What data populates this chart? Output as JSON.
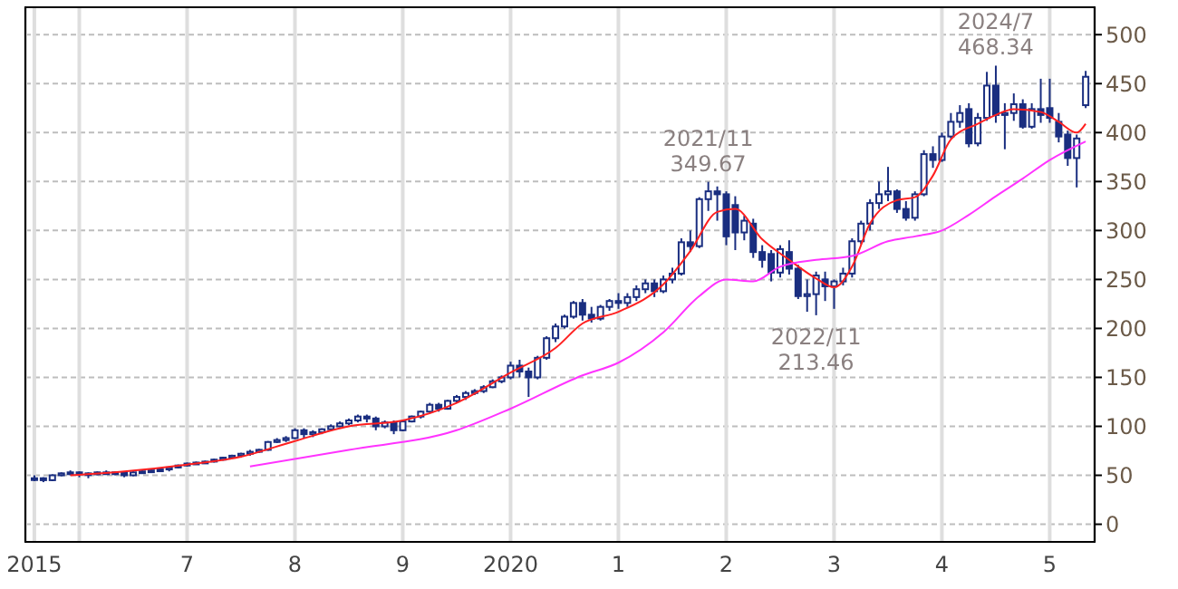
{
  "chart_data": {
    "type": "candlestick",
    "color": "#1a2e80",
    "x": [
      "2015-08",
      "2015-09",
      "2015-10",
      "2015-11",
      "2015-12",
      "2016-01",
      "2016-02",
      "2016-03",
      "2016-04",
      "2016-05",
      "2016-06",
      "2016-07",
      "2016-08",
      "2016-09",
      "2016-10",
      "2016-11",
      "2016-12",
      "2017-01",
      "2017-02",
      "2017-03",
      "2017-04",
      "2017-05",
      "2017-06",
      "2017-07",
      "2017-08",
      "2017-09",
      "2017-10",
      "2017-11",
      "2017-12",
      "2018-01",
      "2018-02",
      "2018-03",
      "2018-04",
      "2018-05",
      "2018-06",
      "2018-07",
      "2018-08",
      "2018-09",
      "2018-10",
      "2018-11",
      "2018-12",
      "2019-01",
      "2019-02",
      "2019-03",
      "2019-04",
      "2019-05",
      "2019-06",
      "2019-07",
      "2019-08",
      "2019-09",
      "2019-10",
      "2019-11",
      "2019-12",
      "2020-01",
      "2020-02",
      "2020-03",
      "2020-04",
      "2020-05",
      "2020-06",
      "2020-07",
      "2020-08",
      "2020-09",
      "2020-10",
      "2020-11",
      "2020-12",
      "2021-01",
      "2021-02",
      "2021-03",
      "2021-04",
      "2021-05",
      "2021-06",
      "2021-07",
      "2021-08",
      "2021-09",
      "2021-10",
      "2021-11",
      "2021-12",
      "2022-01",
      "2022-02",
      "2022-03",
      "2022-04",
      "2022-05",
      "2022-06",
      "2022-07",
      "2022-08",
      "2022-09",
      "2022-10",
      "2022-11",
      "2022-12",
      "2023-01",
      "2023-02",
      "2023-03",
      "2023-04",
      "2023-05",
      "2023-06",
      "2023-07",
      "2023-08",
      "2023-09",
      "2023-10",
      "2023-11",
      "2023-12",
      "2024-01",
      "2024-02",
      "2024-03",
      "2024-04",
      "2024-05",
      "2024-06",
      "2024-07",
      "2024-08",
      "2024-09",
      "2024-10",
      "2024-11",
      "2024-12",
      "2025-01",
      "2025-02",
      "2025-03",
      "2025-04",
      "2025-05"
    ],
    "ohlc": [
      [
        46,
        50,
        44,
        47
      ],
      [
        47,
        48,
        43,
        45
      ],
      [
        45,
        51,
        44,
        50
      ],
      [
        50,
        53,
        49,
        52
      ],
      [
        52,
        55,
        50,
        53
      ],
      [
        53,
        54,
        48,
        52
      ],
      [
        52,
        53,
        47,
        51
      ],
      [
        51,
        54,
        50,
        53
      ],
      [
        53,
        55,
        51,
        52
      ],
      [
        52,
        54,
        50,
        53
      ],
      [
        53,
        54,
        48,
        50
      ],
      [
        50,
        54,
        49,
        53
      ],
      [
        53,
        55,
        52,
        54
      ],
      [
        54,
        56,
        53,
        55
      ],
      [
        55,
        57,
        54,
        56
      ],
      [
        56,
        59,
        54,
        58
      ],
      [
        58,
        61,
        57,
        60
      ],
      [
        60,
        63,
        59,
        62
      ],
      [
        62,
        64,
        61,
        63
      ],
      [
        63,
        65,
        62,
        64
      ],
      [
        64,
        67,
        63,
        66
      ],
      [
        66,
        69,
        65,
        68
      ],
      [
        68,
        71,
        67,
        70
      ],
      [
        70,
        73,
        68,
        72
      ],
      [
        72,
        76,
        70,
        74
      ],
      [
        74,
        77,
        73,
        76
      ],
      [
        76,
        85,
        75,
        84
      ],
      [
        84,
        88,
        83,
        86
      ],
      [
        86,
        90,
        84,
        88
      ],
      [
        88,
        98,
        87,
        96
      ],
      [
        96,
        98,
        88,
        92
      ],
      [
        92,
        96,
        89,
        94
      ],
      [
        94,
        98,
        92,
        97
      ],
      [
        97,
        102,
        95,
        100
      ],
      [
        100,
        105,
        99,
        103
      ],
      [
        103,
        108,
        101,
        106
      ],
      [
        106,
        112,
        104,
        110
      ],
      [
        110,
        112,
        104,
        108
      ],
      [
        108,
        110,
        96,
        100
      ],
      [
        100,
        106,
        98,
        104
      ],
      [
        104,
        106,
        92,
        96
      ],
      [
        96,
        106,
        95,
        105
      ],
      [
        105,
        111,
        104,
        110
      ],
      [
        110,
        116,
        108,
        115
      ],
      [
        115,
        124,
        114,
        122
      ],
      [
        122,
        124,
        115,
        118
      ],
      [
        118,
        127,
        117,
        126
      ],
      [
        126,
        132,
        124,
        130
      ],
      [
        130,
        136,
        127,
        134
      ],
      [
        134,
        138,
        132,
        136
      ],
      [
        136,
        142,
        134,
        140
      ],
      [
        140,
        148,
        139,
        146
      ],
      [
        146,
        152,
        144,
        150
      ],
      [
        150,
        166,
        148,
        162
      ],
      [
        162,
        168,
        150,
        156
      ],
      [
        156,
        160,
        130,
        150
      ],
      [
        150,
        172,
        148,
        170
      ],
      [
        170,
        192,
        168,
        190
      ],
      [
        190,
        205,
        186,
        202
      ],
      [
        202,
        214,
        200,
        212
      ],
      [
        212,
        228,
        210,
        226
      ],
      [
        226,
        230,
        208,
        214
      ],
      [
        214,
        222,
        206,
        210
      ],
      [
        210,
        224,
        208,
        222
      ],
      [
        222,
        230,
        218,
        228
      ],
      [
        228,
        236,
        220,
        226
      ],
      [
        226,
        236,
        222,
        232
      ],
      [
        232,
        244,
        228,
        240
      ],
      [
        240,
        250,
        236,
        246
      ],
      [
        246,
        250,
        232,
        238
      ],
      [
        238,
        254,
        236,
        250
      ],
      [
        250,
        262,
        246,
        256
      ],
      [
        256,
        292,
        254,
        288
      ],
      [
        288,
        300,
        278,
        284
      ],
      [
        284,
        334,
        282,
        332
      ],
      [
        332,
        349.67,
        320,
        340
      ],
      [
        340,
        345,
        310,
        337
      ],
      [
        337,
        340,
        285,
        294
      ],
      [
        326,
        335,
        280,
        298
      ],
      [
        298,
        315,
        290,
        310
      ],
      [
        307,
        312,
        272,
        278
      ],
      [
        278,
        285,
        262,
        270
      ],
      [
        276,
        280,
        248,
        257
      ],
      [
        257,
        285,
        252,
        281
      ],
      [
        278,
        290,
        255,
        261
      ],
      [
        261,
        265,
        230,
        233
      ],
      [
        233,
        250,
        217,
        235
      ],
      [
        235,
        258,
        213.46,
        254
      ],
      [
        250,
        258,
        228,
        243
      ],
      [
        243,
        250,
        220,
        248
      ],
      [
        248,
        262,
        244,
        256
      ],
      [
        256,
        292,
        252,
        289
      ],
      [
        289,
        310,
        286,
        307
      ],
      [
        307,
        332,
        300,
        328
      ],
      [
        328,
        350,
        322,
        337
      ],
      [
        337,
        365,
        330,
        340
      ],
      [
        340,
        342,
        318,
        322
      ],
      [
        322,
        330,
        310,
        313
      ],
      [
        313,
        340,
        310,
        337
      ],
      [
        337,
        382,
        335,
        378
      ],
      [
        378,
        386,
        364,
        372
      ],
      [
        372,
        400,
        370,
        396
      ],
      [
        396,
        420,
        394,
        411
      ],
      [
        411,
        428,
        405,
        420
      ],
      [
        424,
        430,
        385,
        389
      ],
      [
        389,
        420,
        386,
        415
      ],
      [
        415,
        462,
        412,
        448
      ],
      [
        448,
        468.34,
        410,
        418
      ],
      [
        418,
        430,
        383,
        420
      ],
      [
        420,
        440,
        412,
        429
      ],
      [
        429,
        434,
        404,
        406
      ],
      [
        406,
        430,
        404,
        424
      ],
      [
        424,
        455,
        410,
        418
      ],
      [
        425,
        455,
        410,
        415
      ],
      [
        411,
        420,
        390,
        396
      ],
      [
        398,
        402,
        366,
        374
      ],
      [
        374,
        398,
        344,
        394
      ],
      [
        428,
        463,
        425,
        457
      ]
    ],
    "series": [
      {
        "type": "line",
        "color": "#ff2020",
        "x": [
          "2015-12",
          "2016-06",
          "2017-01",
          "2017-07",
          "2018-01",
          "2018-07",
          "2019-01",
          "2019-07",
          "2020-01",
          "2020-06",
          "2020-09",
          "2021-01",
          "2021-06",
          "2021-09",
          "2021-12",
          "2022-02",
          "2022-05",
          "2022-08",
          "2022-11",
          "2023-01",
          "2023-03",
          "2023-05",
          "2023-08",
          "2023-10",
          "2023-12",
          "2024-02",
          "2024-05",
          "2024-07",
          "2024-09",
          "2024-12",
          "2025-02",
          "2025-04",
          "2025-05"
        ],
        "values": [
          50,
          54,
          61,
          69,
          85,
          100,
          106,
          124,
          155,
          180,
          205,
          217,
          245,
          279,
          319,
          322,
          291,
          270,
          251,
          242,
          263,
          307,
          331,
          334,
          356,
          393,
          409,
          418,
          424,
          421,
          411,
          400,
          409
        ]
      },
      {
        "type": "line",
        "color": "#ff33ff",
        "x": [
          "2017-08",
          "2018-07",
          "2019-07",
          "2020-01",
          "2020-09",
          "2021-01",
          "2021-06",
          "2021-10",
          "2022-01",
          "2022-04",
          "2022-07",
          "2022-11",
          "2023-03",
          "2023-07",
          "2023-10",
          "2024-01",
          "2024-04",
          "2024-07",
          "2024-10",
          "2025-01",
          "2025-05"
        ],
        "values": [
          59,
          76,
          96,
          118,
          152,
          165,
          196,
          233,
          250,
          248,
          263,
          270,
          274,
          289,
          294,
          300,
          316,
          335,
          353,
          372,
          391
        ]
      }
    ],
    "xlim": [
      "2015-07",
      "2025-06"
    ],
    "xticks": [
      {
        "value": "2015-08",
        "label": "2015"
      },
      {
        "value": "2016-01",
        "label": null
      },
      {
        "value": "2017-01",
        "label": "7"
      },
      {
        "value": "2018-01",
        "label": "8"
      },
      {
        "value": "2019-01",
        "label": "9"
      },
      {
        "value": "2020-01",
        "label": "2020"
      },
      {
        "value": "2021-01",
        "label": "1"
      },
      {
        "value": "2022-01",
        "label": "2"
      },
      {
        "value": "2023-01",
        "label": "3"
      },
      {
        "value": "2024-01",
        "label": "4"
      },
      {
        "value": "2025-01",
        "label": "5"
      }
    ],
    "ylim": [
      -18,
      528
    ],
    "yticks": [
      0,
      50,
      100,
      150,
      200,
      250,
      300,
      350,
      400,
      450,
      500
    ],
    "grid": true,
    "annotations": [
      {
        "text": "2021/11\n349.67",
        "x": "2021-11",
        "y": 349.67
      },
      {
        "text": "2022/11\n213.46",
        "x": "2022-11",
        "y": 213.46
      },
      {
        "text": "2024/7\n468.34",
        "x": "2024-07",
        "y": 468.34
      }
    ]
  }
}
